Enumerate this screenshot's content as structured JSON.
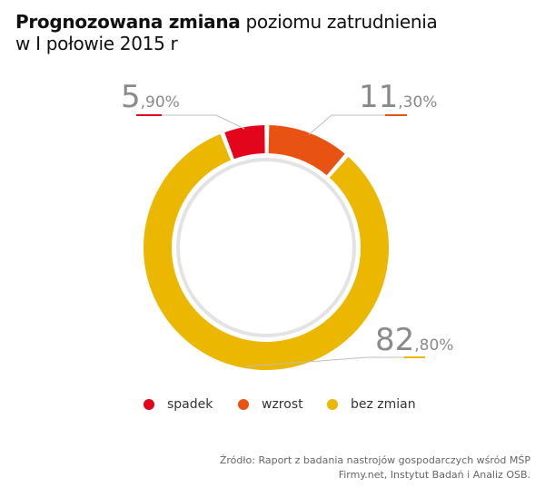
{
  "title": {
    "bold": "Prognozowana zmiana",
    "regular": " poziomu zatrudnienia",
    "line2": "w I połowie 2015 r"
  },
  "chart_data": {
    "type": "pie",
    "categories": [
      "spadek",
      "wzrost",
      "bez zmian"
    ],
    "values": [
      5.9,
      11.3,
      82.8
    ],
    "value_labels": [
      {
        "big": "5",
        "small": ",90%"
      },
      {
        "big": "11",
        "small": ",30%"
      },
      {
        "big": "82",
        "small": ",80%"
      }
    ],
    "colors": [
      "#e3051b",
      "#e85212",
      "#ebb700"
    ],
    "legend": [
      "spadek",
      "wzrost",
      "bez zmian"
    ],
    "legend_position": "bottom"
  },
  "source": {
    "line1": "Źródło: Raport z badania nastrojów gospodarczych wśród MŚP",
    "line2": "Firmy.net, Instytut Badań i Analiz OSB."
  }
}
